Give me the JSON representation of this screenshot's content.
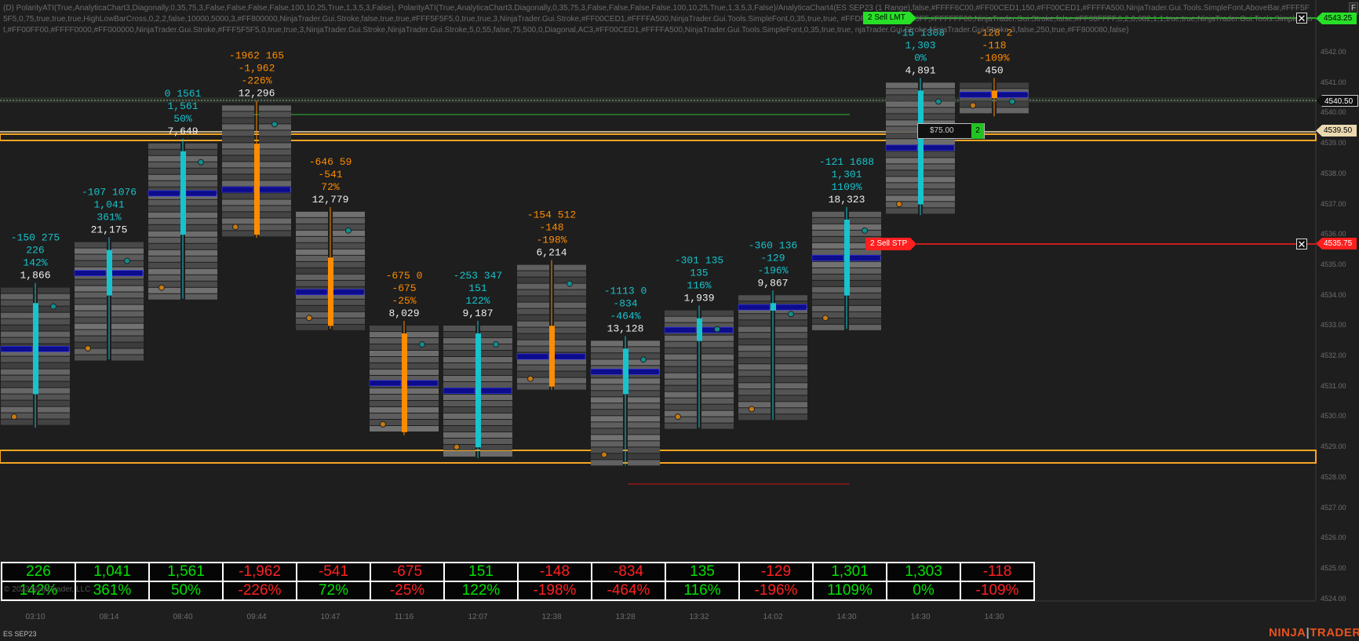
{
  "header": {
    "indicator_text": "(D) PolarityATI(True,AnalyticaChart3,Diagonally,0,35,75,3,False,False,False,False,100,10,25,True,1,3,5,3,False), PolarityATI(True,AnalyticaChart3,Diagonally,0,35,75,3,False,False,False,False,100,10,25,True,1,3,5,3,False)/AnalyticaChart4(ES SEP23 (1 Range),false,#FFFF6C00,#FF00CED1,150,#FF00CED1,#FFFFA500,NinjaTrader.Gui.Tools.SimpleFont,AboveBar,#FFF5F5F5,0,75,true,true,true,HighLowBarCross,0,2,2,false,10000,5000,3,#FF800000,NinjaTrader.Gui.Stroke,false,true,true,#FFF5F5F5,0,true,true,3,NinjaTrader.Gui.Stroke,#FF00CED1,#FFFFA500,NinjaTrader.Gui.Tools.SimpleFont,0,35,true,true, #FFDF5E6,9,#FF0000FF,#FFFFFF00,NinjaTrader.Gui.Stroke,false,#FF00FFFF,0,2,0,682,1,1,true,true,NinjaTrader.Gui.Tools.SimpleFont,#FF00FF00,#FFFF0000,#FF000000,NinjaTrader.Gui.Stroke,#FFF5F5F5,0,true,true,3,NinjaTrader.Gui.Stroke,NinjaTrader.Gui.Stroke,5,0,55,false,75,500,0,Diagonal,AC3,#FF00CED1,#FFFFA500,NinjaTrader.Gui.Tools.SimpleFont,0,35,true,true, njaTrader.Gui.Stroke,NinjaTrader.Gui.Stroke,3,false,250,true,#FF800080,false)"
  },
  "colors": {
    "background": "#1e1e1e",
    "up": "#17c3cc",
    "down": "#ff8c00",
    "blue_bar": "#0c0c8c",
    "band": "#f5a623",
    "sell_lmt": "#27e027",
    "sell_stp": "#ff1f1f"
  },
  "y_axis": {
    "ticks": [
      "4542.00",
      "4541.00",
      "4540.00",
      "4539.00",
      "4538.00",
      "4537.00",
      "4536.00",
      "4535.00",
      "4534.00",
      "4533.00",
      "4532.00",
      "4531.00",
      "4530.00",
      "4529.00",
      "4528.00",
      "4527.00",
      "4526.00",
      "4525.00",
      "4524.00"
    ],
    "price_tags": [
      {
        "label": "4543.25",
        "color": "#27e027"
      },
      {
        "label": "4540.50",
        "color": "#111111"
      },
      {
        "label": "4539.50",
        "color": "#ead9b0"
      },
      {
        "label": "4535.75",
        "color": "#ff1f1f"
      }
    ]
  },
  "x_axis": {
    "ticks": [
      "03:10",
      "08:14",
      "08:40",
      "09:44",
      "10:47",
      "11:16",
      "12:07",
      "12:38",
      "13:28",
      "13:32",
      "14:02",
      "14:30",
      "14:30",
      "14:30"
    ]
  },
  "orders": {
    "sell_lmt": {
      "qty": "2",
      "label": "Sell LMT",
      "price": "4543.25"
    },
    "sell_stp": {
      "qty": "2",
      "label": "Sell STP",
      "price": "4535.75"
    },
    "close_glyph": "✕"
  },
  "position": {
    "pnl": "$75.00",
    "qty": "2"
  },
  "bars": [
    {
      "delta": "-150",
      "vol": "275",
      "cum": "226",
      "pct": "142%",
      "total": "1,866",
      "dir": "up",
      "open": 4530.75,
      "close": 4533.75,
      "high": 4534.0,
      "low": 4529.75
    },
    {
      "delta": "-107",
      "vol": "1076",
      "cum": "1,041",
      "pct": "361%",
      "total": "21,175",
      "dir": "up",
      "open": 4534.0,
      "close": 4535.5,
      "high": 4535.5,
      "low": 4532.0
    },
    {
      "delta": "0",
      "vol": "1561",
      "cum": "1,561",
      "pct": "50%",
      "total": "7,649",
      "dir": "up",
      "open": 4536.0,
      "close": 4538.75,
      "high": 4538.75,
      "low": 4534.0
    },
    {
      "delta": "-1962",
      "vol": "165",
      "cum": "-1,962",
      "pct": "-226%",
      "total": "12,296",
      "dir": "down",
      "open": 4539.0,
      "close": 4536.0,
      "high": 4540.0,
      "low": 4536.0
    },
    {
      "delta": "-646",
      "vol": "59",
      "cum": "-541",
      "pct": "72%",
      "total": "12,779",
      "dir": "down",
      "open": 4535.25,
      "close": 4533.0,
      "high": 4536.5,
      "low": 4533.0
    },
    {
      "delta": "-675",
      "vol": "0",
      "cum": "-675",
      "pct": "-25%",
      "total": "8,029",
      "dir": "down",
      "open": 4532.75,
      "close": 4529.5,
      "high": 4532.75,
      "low": 4529.5
    },
    {
      "delta": "-253",
      "vol": "347",
      "cum": "151",
      "pct": "122%",
      "total": "9,187",
      "dir": "up",
      "open": 4529.0,
      "close": 4532.75,
      "high": 4532.75,
      "low": 4528.75
    },
    {
      "delta": "-154",
      "vol": "512",
      "cum": "-148",
      "pct": "-198%",
      "total": "6,214",
      "dir": "down",
      "open": 4533.0,
      "close": 4531.0,
      "high": 4534.75,
      "low": 4531.0
    },
    {
      "delta": "-1113",
      "vol": "0",
      "cum": "-834",
      "pct": "-464%",
      "total": "13,128",
      "dir": "up",
      "open": 4530.75,
      "close": 4532.25,
      "high": 4532.25,
      "low": 4528.5
    },
    {
      "delta": "-301",
      "vol": "135",
      "cum": "135",
      "pct": "116%",
      "total": "1,939",
      "dir": "up",
      "open": 4532.5,
      "close": 4533.25,
      "high": 4533.25,
      "low": 4529.75
    },
    {
      "delta": "-360",
      "vol": "136",
      "cum": "-129",
      "pct": "-196%",
      "total": "9,867",
      "dir": "up",
      "open": 4533.5,
      "close": 4533.75,
      "high": 4533.75,
      "low": 4530.0
    },
    {
      "delta": "-121",
      "vol": "1688",
      "cum": "1,301",
      "pct": "1109%",
      "total": "18,323",
      "dir": "up",
      "open": 4534.0,
      "close": 4536.5,
      "high": 4536.5,
      "low": 4533.0
    },
    {
      "delta": "-15",
      "vol": "1308",
      "cum": "1,303",
      "pct": "0%",
      "total": "4,891",
      "dir": "up",
      "open": 4537.0,
      "close": 4540.75,
      "high": 4540.75,
      "low": 4536.75
    },
    {
      "delta": "-128",
      "vol": "2",
      "cum": "-118",
      "pct": "-109%",
      "total": "450",
      "dir": "down",
      "open": 4540.75,
      "close": 4540.5,
      "high": 4540.75,
      "low": 4540.0
    }
  ],
  "stats_row": {
    "top": [
      {
        "v": "226",
        "c": "pos"
      },
      {
        "v": "1,041",
        "c": "pos"
      },
      {
        "v": "1,561",
        "c": "pos"
      },
      {
        "v": "-1,962",
        "c": "neg"
      },
      {
        "v": "-541",
        "c": "neg"
      },
      {
        "v": "-675",
        "c": "neg"
      },
      {
        "v": "151",
        "c": "pos"
      },
      {
        "v": "-148",
        "c": "neg"
      },
      {
        "v": "-834",
        "c": "neg"
      },
      {
        "v": "135",
        "c": "pos"
      },
      {
        "v": "-129",
        "c": "neg"
      },
      {
        "v": "1,301",
        "c": "pos"
      },
      {
        "v": "1,303",
        "c": "pos"
      },
      {
        "v": "-118",
        "c": "neg"
      }
    ],
    "bottom": [
      {
        "v": "142%",
        "c": "pos"
      },
      {
        "v": "361%",
        "c": "pos"
      },
      {
        "v": "50%",
        "c": "pos"
      },
      {
        "v": "-226%",
        "c": "neg"
      },
      {
        "v": "72%",
        "c": "pos"
      },
      {
        "v": "-25%",
        "c": "neg"
      },
      {
        "v": "122%",
        "c": "pos"
      },
      {
        "v": "-198%",
        "c": "neg"
      },
      {
        "v": "-464%",
        "c": "neg"
      },
      {
        "v": "116%",
        "c": "pos"
      },
      {
        "v": "-196%",
        "c": "neg"
      },
      {
        "v": "1109%",
        "c": "pos"
      },
      {
        "v": "0%",
        "c": "pos"
      },
      {
        "v": "-109%",
        "c": "neg"
      }
    ]
  },
  "footer": {
    "instrument": "ES SEP23",
    "copyright": "© 2023 NinjaTrader, LLC",
    "logo_part1": "NINJA",
    "logo_sep": "|",
    "logo_part2": "TRADER",
    "f_button": "F"
  }
}
